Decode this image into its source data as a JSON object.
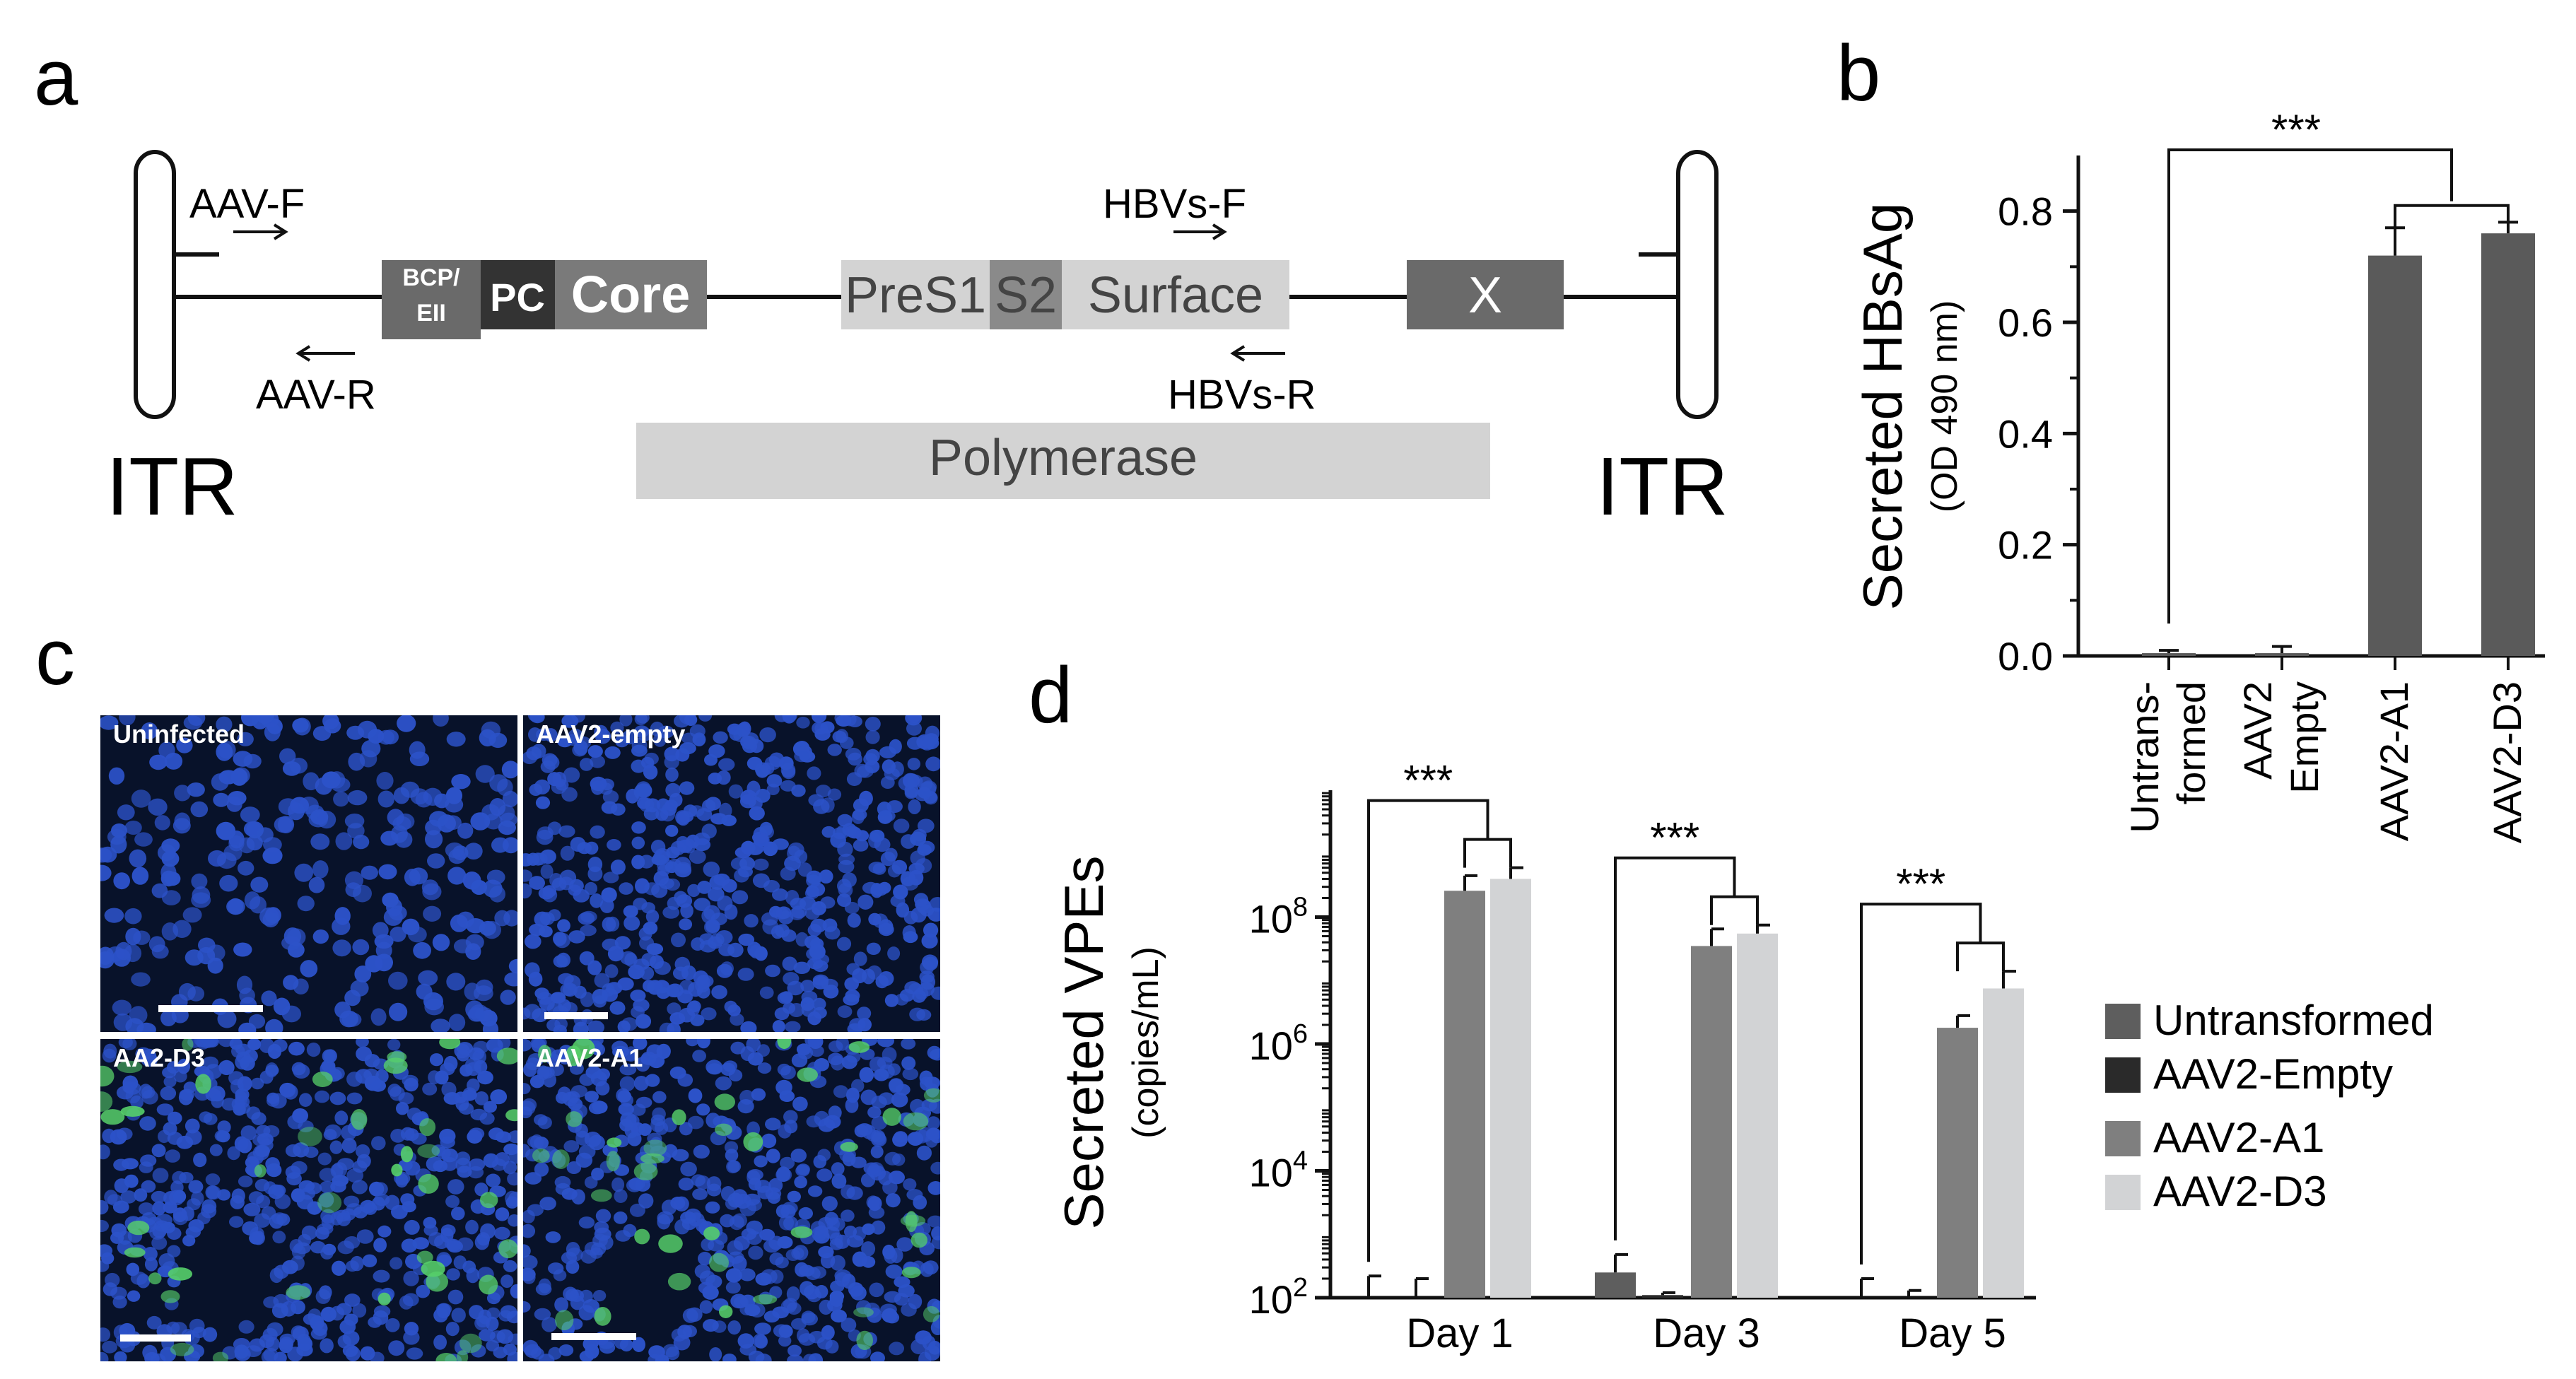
{
  "panel_letters": {
    "a": "a",
    "b": "b",
    "c": "c",
    "d": "d"
  },
  "panel_a": {
    "itr_left": "ITR",
    "itr_right": "ITR",
    "aav_f": "AAV-F",
    "aav_r": "AAV-R",
    "hbvs_f": "HBVs-F",
    "hbvs_r": "HBVs-R",
    "bcp_line1": "BCP/",
    "bcp_line2": "EII",
    "pc": "PC",
    "core": "Core",
    "pres1": "PreS1",
    "s2": "S2",
    "surface": "Surface",
    "x": "X",
    "polymerase": "Polymerase"
  },
  "panel_c": {
    "tiles": [
      {
        "label": "Uninfected",
        "green": false
      },
      {
        "label": "AAV2-empty",
        "green": false
      },
      {
        "label": "AA2-D3",
        "green": true
      },
      {
        "label": "AAV2-A1",
        "green": true
      }
    ]
  },
  "colors": {
    "untransformed": "#5e5e5e",
    "aav2_empty": "#2a2a2a",
    "aav2_a1": "#7f7f7f",
    "aav2_d3": "#d2d3d5",
    "panel_b_bars": "#5a5a5a",
    "nuclei": "#2c52c8",
    "gfp": "#57d06a"
  },
  "chart_data": [
    {
      "panel": "b",
      "type": "bar",
      "title": "",
      "xlabel": "",
      "ylabel": "Secreted HBsAg",
      "ylabel_sub": "(OD 490 nm)",
      "categories": [
        [
          "Untrans-",
          "formed"
        ],
        [
          "AAV2",
          "Empty"
        ],
        [
          "AAV2-A1"
        ],
        [
          "AAV2-D3"
        ]
      ],
      "values": [
        0.005,
        0.005,
        0.72,
        0.76
      ],
      "errors": [
        0.005,
        0.012,
        0.05,
        0.02
      ],
      "ylim": [
        0,
        0.9
      ],
      "yticks": [
        0.0,
        0.2,
        0.4,
        0.6,
        0.8
      ],
      "ytick_labels": [
        "0.0",
        "0.2",
        "0.4",
        "0.6",
        "0.8"
      ],
      "significance": "***"
    },
    {
      "panel": "d",
      "type": "bar",
      "title": "",
      "xlabel": "",
      "ylabel": "Secreted VPEs",
      "ylabel_sub": "(copies/mL)",
      "yscale": "log",
      "ylim": [
        100,
        10000000000
      ],
      "yticks": [
        100,
        10000,
        1000000,
        100000000
      ],
      "ytick_labels": [
        {
          "base": "10",
          "exp": "2"
        },
        {
          "base": "10",
          "exp": "4"
        },
        {
          "base": "10",
          "exp": "6"
        },
        {
          "base": "10",
          "exp": "8"
        }
      ],
      "categories": [
        "Day 1",
        "Day 3",
        "Day 5"
      ],
      "series": [
        {
          "name": "Untransformed",
          "values": [
            100,
            250,
            100
          ],
          "errors": [
            220,
            480,
            200
          ]
        },
        {
          "name": "AAV2-Empty",
          "values": [
            100,
            110,
            100
          ],
          "errors": [
            200,
            120,
            130
          ]
        },
        {
          "name": "AAV2-A1",
          "values": [
            260000000,
            35000000,
            1800000
          ],
          "errors": [
            450000000,
            65000000,
            2800000
          ]
        },
        {
          "name": "AAV2-D3",
          "values": [
            400000000,
            55000000,
            7500000
          ],
          "errors": [
            600000000,
            75000000,
            14000000
          ]
        }
      ],
      "legend_position": "right",
      "significance": "***"
    }
  ]
}
